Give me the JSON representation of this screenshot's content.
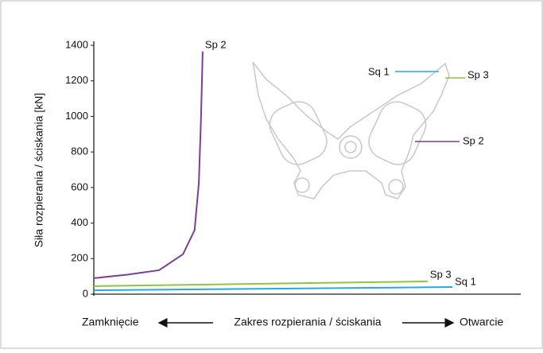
{
  "chart_data": {
    "type": "line",
    "ylabel": "Siła rozpierania / ściskania [kN]",
    "xlabel": "Zakres rozpierania / ściskania",
    "xlabel_start": "Zamknięcie",
    "xlabel_end": "Otwarcie",
    "xlim": [
      0,
      100
    ],
    "ylim": [
      0,
      1400
    ],
    "yticks": [
      0,
      200,
      400,
      600,
      800,
      1000,
      1200,
      1400
    ],
    "grid": false,
    "series": [
      {
        "name": "Sp 2",
        "color": "#7b3f98",
        "x": [
          0,
          8,
          15.3,
          20.9,
          23.6,
          24.6,
          25.1,
          25.5
        ],
        "values": [
          90,
          110,
          135,
          225,
          360,
          625,
          985,
          1365
        ]
      },
      {
        "name": "Sp 3",
        "color": "#8dc63f",
        "x": [
          0,
          78.2
        ],
        "values": [
          45,
          72
        ]
      },
      {
        "name": "Sq 1",
        "color": "#29a9e0",
        "x": [
          0,
          84
        ],
        "values": [
          22,
          40
        ]
      }
    ]
  }
}
